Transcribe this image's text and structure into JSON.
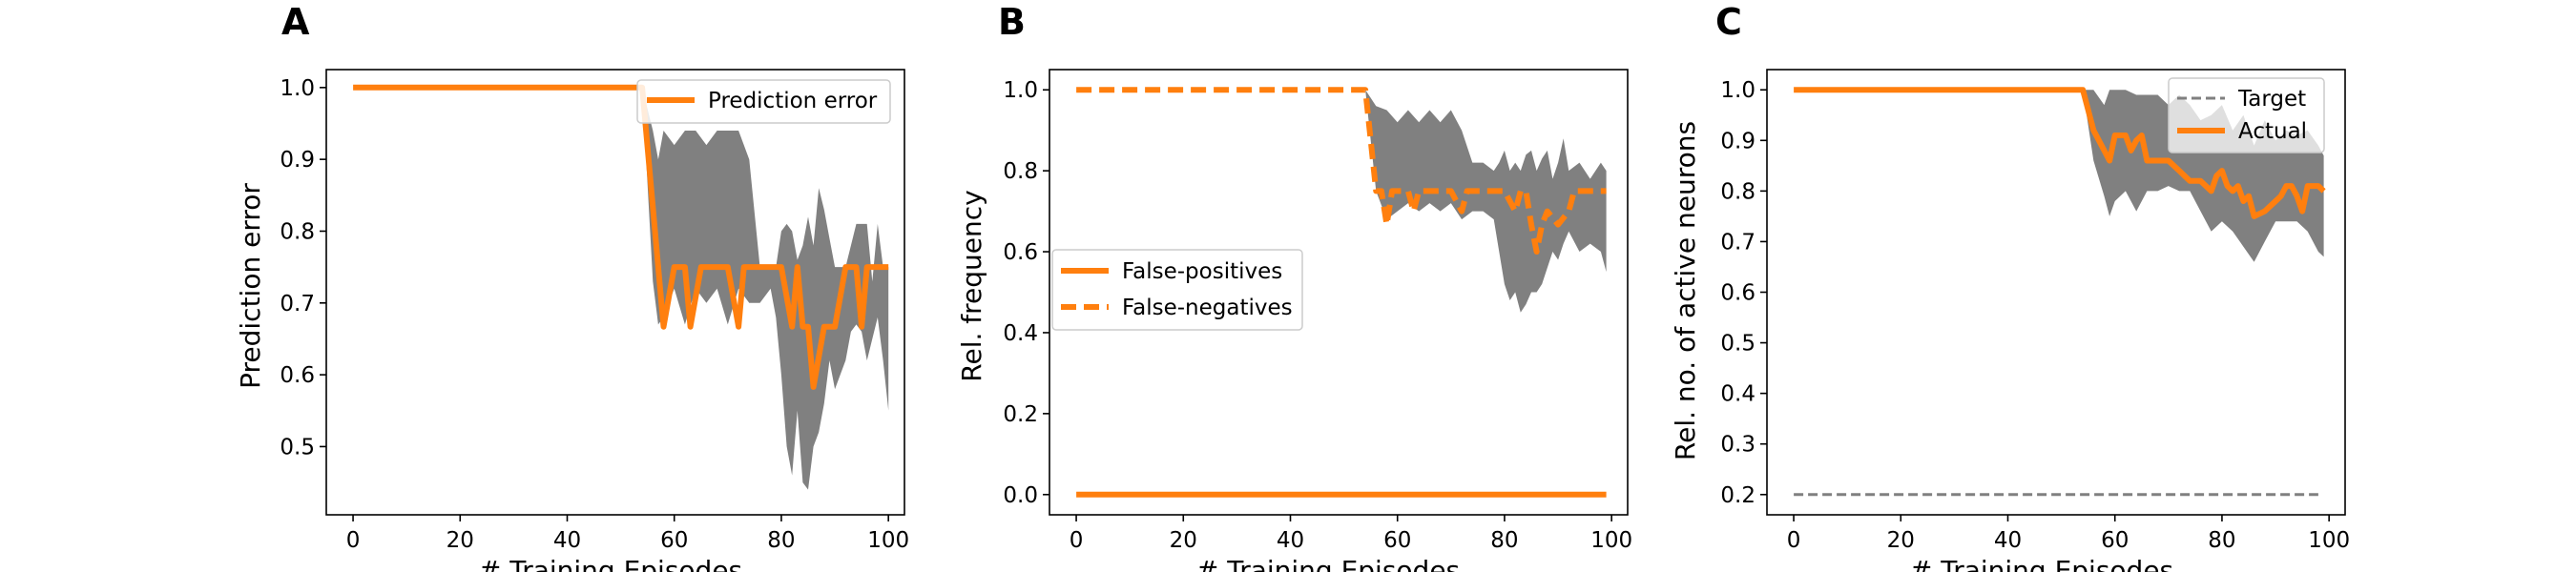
{
  "figure": {
    "panels": [
      "A",
      "B",
      "C"
    ]
  },
  "colors": {
    "orange": "#ff7f0e",
    "band": "#808080",
    "target": "#808080",
    "axis": "#000000"
  },
  "chart_data": [
    {
      "type": "line",
      "panel": "A",
      "xlabel": "# Training Episodes",
      "ylabel": "Prediction error",
      "xlim": [
        -5,
        103
      ],
      "ylim": [
        0.405,
        1.025
      ],
      "xticks": [
        0,
        20,
        40,
        60,
        80,
        100
      ],
      "yticks": [
        0.5,
        0.6,
        0.7,
        0.8,
        0.9,
        1.0
      ],
      "ytick_labels": [
        "0.5",
        "0.6",
        "0.7",
        "0.8",
        "0.9",
        "1.0"
      ],
      "legend_position": "upper right",
      "series": [
        {
          "name": "Prediction error",
          "style": "solid",
          "x": [
            0,
            54,
            57,
            58,
            60,
            62,
            63,
            65,
            68,
            70,
            72,
            73,
            75,
            78,
            80,
            82,
            83,
            84,
            85,
            86,
            88,
            90,
            92,
            94,
            95,
            96,
            97,
            98,
            100
          ],
          "y": [
            1.0,
            1.0,
            0.75,
            0.667,
            0.75,
            0.75,
            0.667,
            0.75,
            0.75,
            0.75,
            0.667,
            0.75,
            0.75,
            0.75,
            0.75,
            0.667,
            0.75,
            0.667,
            0.667,
            0.583,
            0.667,
            0.667,
            0.75,
            0.75,
            0.667,
            0.75,
            0.75,
            0.75,
            0.75
          ]
        }
      ],
      "band": {
        "x": [
          0,
          54,
          56,
          57,
          58,
          60,
          62,
          64,
          66,
          68,
          70,
          72,
          74,
          76,
          78,
          79,
          80,
          81,
          82,
          83,
          84,
          85,
          86,
          87,
          88,
          89,
          90,
          91,
          92,
          93,
          94,
          95,
          96,
          97,
          98,
          99,
          100
        ],
        "upper": [
          1.0,
          1.0,
          0.94,
          0.9,
          0.94,
          0.92,
          0.94,
          0.94,
          0.92,
          0.94,
          0.94,
          0.94,
          0.9,
          0.75,
          0.75,
          0.75,
          0.8,
          0.81,
          0.8,
          0.76,
          0.78,
          0.82,
          0.78,
          0.86,
          0.83,
          0.79,
          0.75,
          0.75,
          0.75,
          0.78,
          0.81,
          0.81,
          0.81,
          0.73,
          0.81,
          0.75,
          0.75
        ],
        "lower": [
          1.0,
          1.0,
          0.73,
          0.67,
          0.68,
          0.72,
          0.67,
          0.72,
          0.7,
          0.72,
          0.67,
          0.72,
          0.7,
          0.7,
          0.72,
          0.68,
          0.6,
          0.5,
          0.46,
          0.55,
          0.45,
          0.44,
          0.5,
          0.52,
          0.56,
          0.62,
          0.58,
          0.6,
          0.62,
          0.66,
          0.67,
          0.66,
          0.62,
          0.65,
          0.68,
          0.62,
          0.55
        ]
      }
    },
    {
      "type": "line",
      "panel": "B",
      "xlabel": "# Training Episodes",
      "ylabel": "Rel. frequency",
      "xlim": [
        -5,
        103
      ],
      "ylim": [
        -0.05,
        1.05
      ],
      "xticks": [
        0,
        20,
        40,
        60,
        80,
        100
      ],
      "yticks": [
        0.0,
        0.2,
        0.4,
        0.6,
        0.8,
        1.0
      ],
      "ytick_labels": [
        "0.0",
        "0.2",
        "0.4",
        "0.6",
        "0.8",
        "1.0"
      ],
      "legend_position": "center left",
      "series": [
        {
          "name": "False-positives",
          "style": "solid",
          "x": [
            0,
            99
          ],
          "y": [
            0.0,
            0.0
          ]
        },
        {
          "name": "False-negatives",
          "style": "dashed",
          "x": [
            0,
            54,
            55,
            56,
            57,
            58,
            59,
            60,
            62,
            63,
            64,
            66,
            68,
            70,
            72,
            73,
            74,
            76,
            78,
            80,
            82,
            83,
            84,
            85,
            86,
            87,
            88,
            90,
            92,
            93,
            94,
            96,
            99
          ],
          "y": [
            1.0,
            1.0,
            0.875,
            0.75,
            0.75,
            0.667,
            0.75,
            0.75,
            0.75,
            0.7,
            0.75,
            0.75,
            0.75,
            0.75,
            0.7,
            0.75,
            0.75,
            0.75,
            0.75,
            0.75,
            0.7,
            0.75,
            0.75,
            0.667,
            0.6,
            0.667,
            0.7,
            0.667,
            0.7,
            0.75,
            0.75,
            0.75,
            0.75
          ]
        }
      ],
      "band": {
        "x": [
          0,
          54,
          56,
          58,
          60,
          62,
          64,
          66,
          68,
          70,
          72,
          74,
          76,
          78,
          79,
          80,
          81,
          82,
          83,
          84,
          85,
          86,
          87,
          88,
          89,
          90,
          91,
          92,
          94,
          96,
          98,
          99
        ],
        "upper": [
          1.0,
          1.0,
          0.96,
          0.95,
          0.92,
          0.95,
          0.92,
          0.95,
          0.92,
          0.95,
          0.9,
          0.82,
          0.82,
          0.8,
          0.82,
          0.85,
          0.8,
          0.82,
          0.8,
          0.84,
          0.85,
          0.8,
          0.83,
          0.85,
          0.78,
          0.82,
          0.88,
          0.8,
          0.82,
          0.78,
          0.82,
          0.8
        ],
        "lower": [
          1.0,
          1.0,
          0.75,
          0.68,
          0.7,
          0.72,
          0.7,
          0.72,
          0.7,
          0.72,
          0.68,
          0.7,
          0.7,
          0.68,
          0.6,
          0.52,
          0.48,
          0.5,
          0.45,
          0.47,
          0.5,
          0.5,
          0.52,
          0.56,
          0.6,
          0.58,
          0.62,
          0.65,
          0.6,
          0.62,
          0.6,
          0.55
        ]
      }
    },
    {
      "type": "line",
      "panel": "C",
      "xlabel": "# Training Episodes",
      "ylabel": "Rel. no. of active neurons",
      "xlim": [
        -5,
        103
      ],
      "ylim": [
        0.16,
        1.04
      ],
      "xticks": [
        0,
        20,
        40,
        60,
        80,
        100
      ],
      "yticks": [
        0.2,
        0.3,
        0.4,
        0.5,
        0.6,
        0.7,
        0.8,
        0.9,
        1.0
      ],
      "ytick_labels": [
        "0.2",
        "0.3",
        "0.4",
        "0.5",
        "0.6",
        "0.7",
        "0.8",
        "0.9",
        "1.0"
      ],
      "legend_position": "upper right",
      "series": [
        {
          "name": "Target",
          "style": "dashed-gray",
          "x": [
            0,
            98
          ],
          "y": [
            0.2,
            0.2
          ]
        },
        {
          "name": "Actual",
          "style": "solid",
          "x": [
            0,
            54,
            56,
            58,
            59,
            60,
            62,
            63,
            64,
            65,
            66,
            68,
            70,
            72,
            74,
            76,
            78,
            79,
            80,
            81,
            82,
            83,
            84,
            85,
            86,
            88,
            90,
            91,
            92,
            93,
            94,
            95,
            96,
            97,
            98,
            99
          ],
          "y": [
            1.0,
            1.0,
            0.92,
            0.88,
            0.86,
            0.91,
            0.91,
            0.88,
            0.9,
            0.91,
            0.86,
            0.86,
            0.86,
            0.84,
            0.82,
            0.82,
            0.8,
            0.83,
            0.84,
            0.81,
            0.8,
            0.81,
            0.78,
            0.79,
            0.75,
            0.76,
            0.78,
            0.79,
            0.81,
            0.81,
            0.79,
            0.76,
            0.81,
            0.81,
            0.81,
            0.8
          ]
        }
      ],
      "band": {
        "x": [
          0,
          54,
          56,
          58,
          59,
          60,
          62,
          64,
          66,
          68,
          70,
          72,
          74,
          76,
          78,
          80,
          82,
          84,
          86,
          88,
          90,
          92,
          94,
          96,
          98,
          99
        ],
        "upper": [
          1.0,
          1.0,
          1.0,
          0.97,
          1.0,
          1.0,
          1.0,
          0.99,
          0.99,
          0.99,
          0.97,
          0.99,
          0.97,
          0.94,
          0.95,
          0.97,
          0.92,
          0.95,
          0.89,
          0.94,
          0.9,
          0.92,
          0.91,
          0.92,
          0.89,
          0.87
        ],
        "lower": [
          1.0,
          1.0,
          0.86,
          0.79,
          0.75,
          0.78,
          0.8,
          0.76,
          0.8,
          0.8,
          0.81,
          0.8,
          0.8,
          0.76,
          0.72,
          0.74,
          0.72,
          0.69,
          0.66,
          0.7,
          0.74,
          0.74,
          0.74,
          0.72,
          0.68,
          0.67
        ]
      }
    }
  ]
}
